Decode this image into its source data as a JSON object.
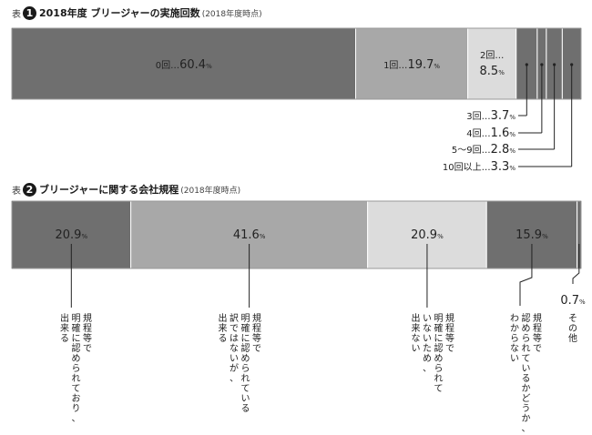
{
  "chart_data": [
    {
      "type": "bar",
      "prefix": "表",
      "number": "1",
      "title": "2018年度 ブリージャーの実施回数",
      "subtitle": "(2018年度時点)",
      "unit": "%",
      "categories": [
        "0回",
        "1回",
        "2回",
        "3回",
        "4回",
        "5〜9回",
        "10回以上"
      ],
      "values": [
        60.4,
        19.7,
        8.5,
        3.7,
        1.6,
        2.8,
        3.3
      ],
      "value_labels": [
        "60.4",
        "19.7",
        "8.5",
        "3.7",
        "1.6",
        "2.8",
        "3.3"
      ],
      "separator": "…",
      "colors": [
        "#6f6f6f",
        "#a8a8a8",
        "#dcdcdc",
        "#6f6f6f",
        "#6f6f6f",
        "#6f6f6f",
        "#6f6f6f"
      ]
    },
    {
      "type": "bar",
      "prefix": "表",
      "number": "2",
      "title": "ブリージャーに関する会社規程",
      "subtitle": "(2018年度時点)",
      "unit": "%",
      "categories": [
        "規程等で明確に認められており、出来る",
        "規程等で明確に認められている訳ではないが、出来る",
        "規程等で明確に認められていないため、出来ない",
        "規程等で認められているかどうか、わからない",
        "その他"
      ],
      "category_lines": [
        [
          "規程等で",
          "明確に認められており、",
          "出来る"
        ],
        [
          "規程等で",
          "明確に認められている",
          "訳ではないが、",
          "出来る"
        ],
        [
          "規程等で",
          "明確に認められて",
          "いないため、",
          "出来ない"
        ],
        [
          "規程等で",
          "認められているかどうか、",
          "わからない"
        ],
        [
          "その他"
        ]
      ],
      "values": [
        20.9,
        41.6,
        20.9,
        15.9,
        0.7
      ],
      "value_labels": [
        "20.9",
        "41.6",
        "20.9",
        "15.9",
        "0.7"
      ],
      "colors": [
        "#6f6f6f",
        "#a8a8a8",
        "#dcdcdc",
        "#6f6f6f",
        "#6f6f6f"
      ]
    }
  ]
}
